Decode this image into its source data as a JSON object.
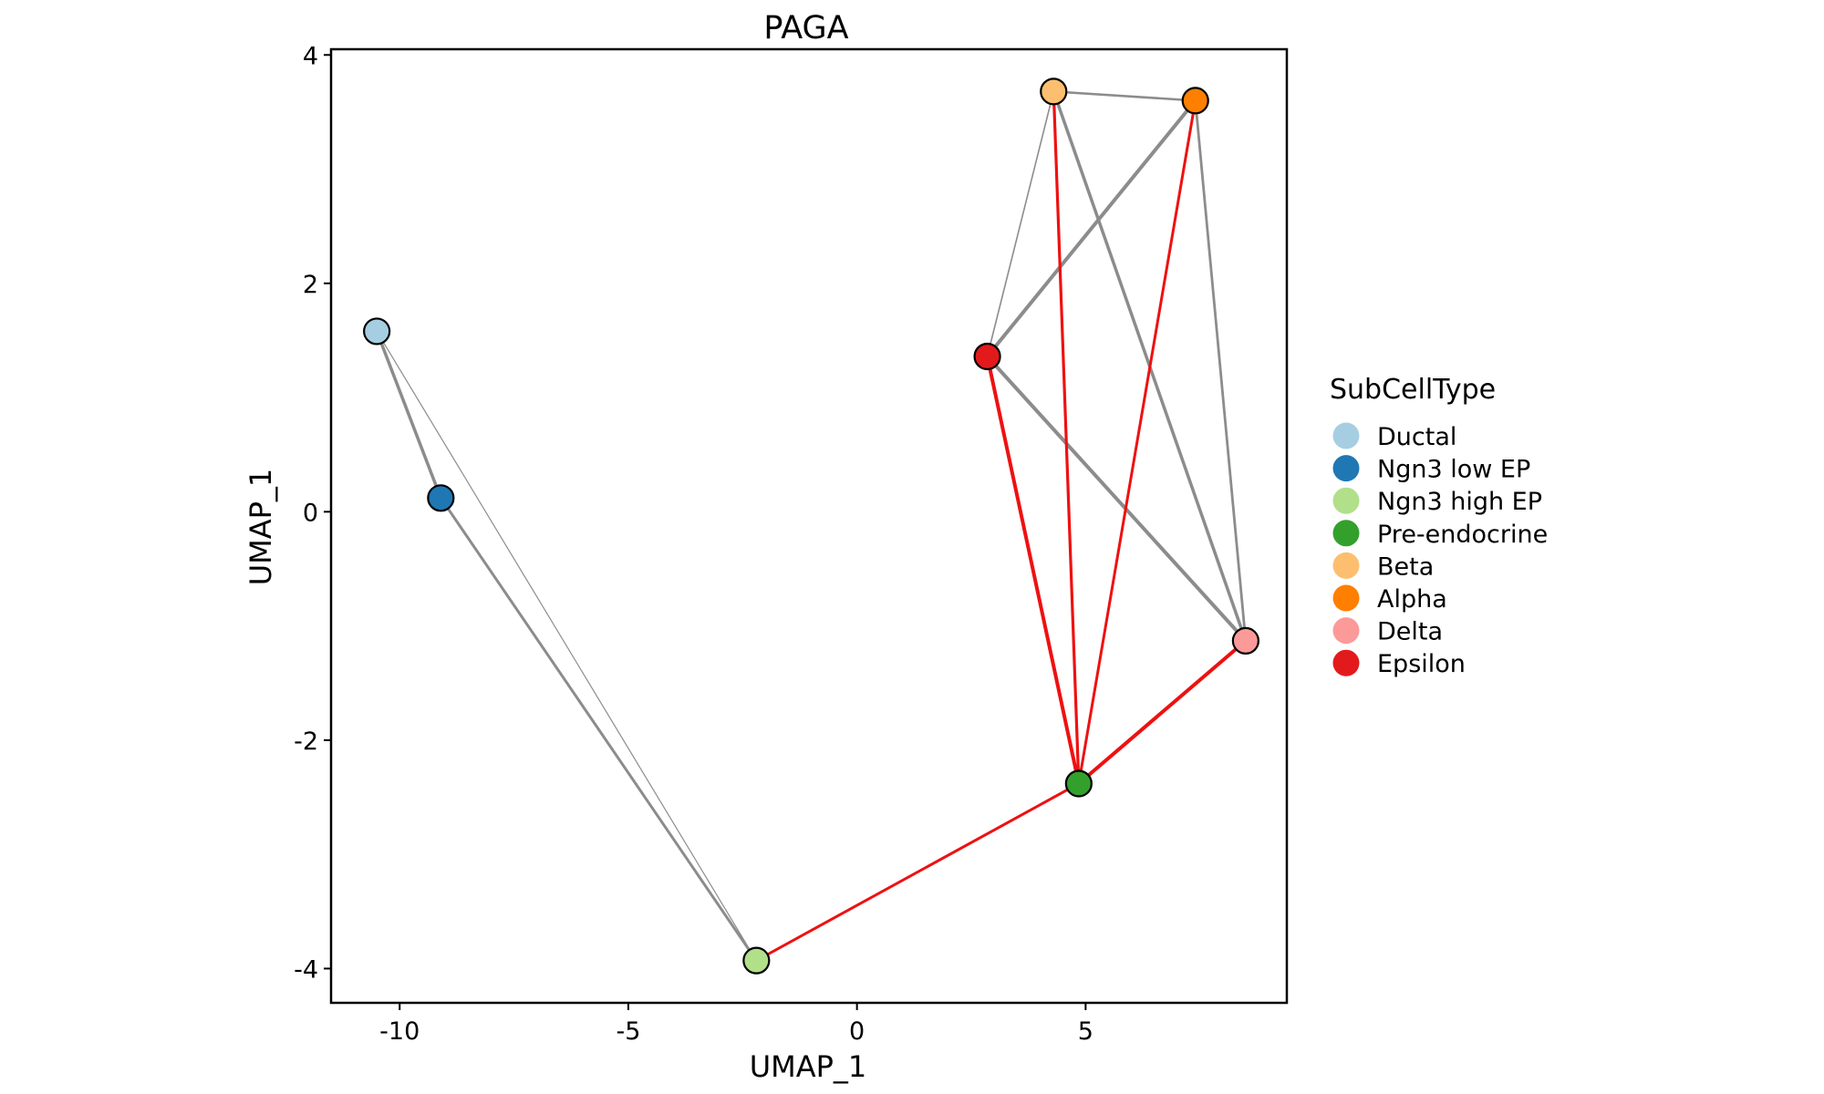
{
  "chart_data": {
    "type": "scatter",
    "title": "PAGA",
    "xlabel": "UMAP_1",
    "ylabel": "UMAP_1",
    "xlim": [
      -11.5,
      9.4
    ],
    "ylim": [
      -4.3,
      4.05
    ],
    "x_ticks": [
      {
        "value": -10,
        "label": "-10"
      },
      {
        "value": -5,
        "label": "-5"
      },
      {
        "value": 0,
        "label": "0"
      },
      {
        "value": 5,
        "label": "5"
      }
    ],
    "y_ticks": [
      {
        "value": -4,
        "label": "-4"
      },
      {
        "value": -2,
        "label": "-2"
      },
      {
        "value": 0,
        "label": "0"
      },
      {
        "value": 2,
        "label": "2"
      },
      {
        "value": 4,
        "label": "4"
      }
    ],
    "grid": false,
    "legend_position": "right",
    "legend_title": "SubCellType",
    "nodes": [
      {
        "name": "Ductal",
        "x": -10.5,
        "y": 1.58,
        "color": "#A6CEE3"
      },
      {
        "name": "Ngn3 low EP",
        "x": -9.1,
        "y": 0.12,
        "color": "#1F78B4"
      },
      {
        "name": "Ngn3 high EP",
        "x": -2.2,
        "y": -3.93,
        "color": "#B2DF8A"
      },
      {
        "name": "Pre-endocrine",
        "x": 4.85,
        "y": -2.38,
        "color": "#33A02C"
      },
      {
        "name": "Beta",
        "x": 4.3,
        "y": 3.68,
        "color": "#FDBF6F"
      },
      {
        "name": "Alpha",
        "x": 7.4,
        "y": 3.6,
        "color": "#FF7F00"
      },
      {
        "name": "Delta",
        "x": 8.5,
        "y": -1.13,
        "color": "#FB9A99"
      },
      {
        "name": "Epsilon",
        "x": 2.85,
        "y": 1.36,
        "color": "#E31A1C"
      }
    ],
    "edges": [
      {
        "source": "Ductal",
        "target": "Ngn3 low EP",
        "weight": 3.5,
        "color": "#8C8C8C"
      },
      {
        "source": "Ductal",
        "target": "Ngn3 high EP",
        "weight": 1.2,
        "color": "#8C8C8C"
      },
      {
        "source": "Ngn3 low EP",
        "target": "Ngn3 high EP",
        "weight": 3.0,
        "color": "#8C8C8C"
      },
      {
        "source": "Beta",
        "target": "Alpha",
        "weight": 2.5,
        "color": "#8C8C8C"
      },
      {
        "source": "Beta",
        "target": "Epsilon",
        "weight": 1.6,
        "color": "#8C8C8C"
      },
      {
        "source": "Beta",
        "target": "Delta",
        "weight": 3.5,
        "color": "#8C8C8C"
      },
      {
        "source": "Alpha",
        "target": "Epsilon",
        "weight": 4.0,
        "color": "#8C8C8C"
      },
      {
        "source": "Alpha",
        "target": "Delta",
        "weight": 2.8,
        "color": "#8C8C8C"
      },
      {
        "source": "Epsilon",
        "target": "Delta",
        "weight": 4.0,
        "color": "#8C8C8C"
      },
      {
        "source": "Ngn3 high EP",
        "target": "Pre-endocrine",
        "weight": 3.0,
        "color": "#EE1111"
      },
      {
        "source": "Pre-endocrine",
        "target": "Epsilon",
        "weight": 4.0,
        "color": "#EE1111"
      },
      {
        "source": "Pre-endocrine",
        "target": "Beta",
        "weight": 3.2,
        "color": "#EE1111"
      },
      {
        "source": "Pre-endocrine",
        "target": "Alpha",
        "weight": 3.0,
        "color": "#EE1111"
      },
      {
        "source": "Pre-endocrine",
        "target": "Delta",
        "weight": 4.0,
        "color": "#EE1111"
      }
    ]
  }
}
